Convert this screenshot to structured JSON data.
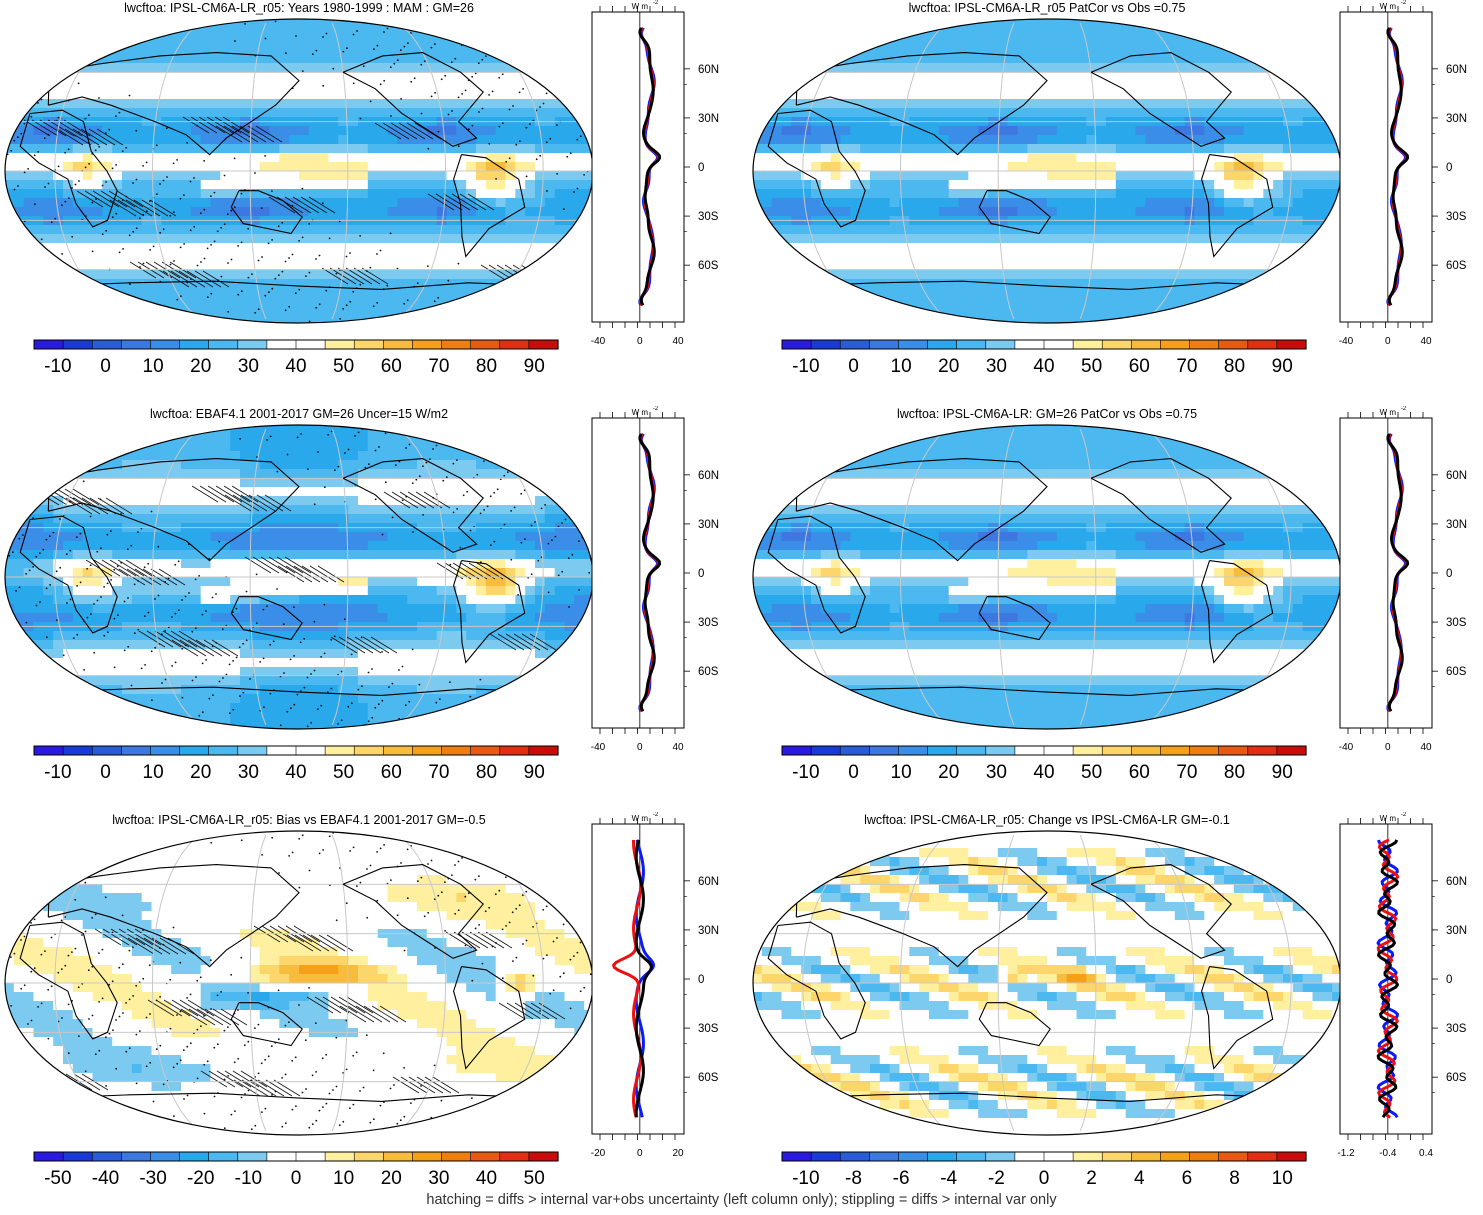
{
  "panels": [
    {
      "id": "p1",
      "title": "lwcftoa: IPSL-CM6A-LR_r05: Years 1980-1999 : MAM : GM=26",
      "pattern": "mean",
      "hatching": true,
      "stippling": true,
      "colorbar": [
        "-10",
        "0",
        "10",
        "20",
        "30",
        "40",
        "50",
        "60",
        "70",
        "80",
        "90"
      ],
      "profile_unit": "W m",
      "profile_xticks": [
        "-40",
        "0",
        "40"
      ],
      "profile_lat_ticks": [
        "60N",
        "30N",
        "0",
        "30S",
        "60S"
      ]
    },
    {
      "id": "p2",
      "title": "lwcftoa: IPSL-CM6A-LR_r05 PatCor vs Obs =0.75",
      "pattern": "mean",
      "hatching": false,
      "stippling": false,
      "colorbar": [
        "-10",
        "0",
        "10",
        "20",
        "30",
        "40",
        "50",
        "60",
        "70",
        "80",
        "90"
      ],
      "profile_unit": "W m",
      "profile_xticks": [
        "-40",
        "0",
        "40"
      ],
      "profile_lat_ticks": [
        "60N",
        "30N",
        "0",
        "30S",
        "60S"
      ]
    },
    {
      "id": "p3",
      "title": "lwcftoa: EBAF4.1 2001-2017 GM=26 Uncer=15 W/m2",
      "pattern": "obs",
      "hatching": true,
      "stippling": true,
      "colorbar": [
        "-10",
        "0",
        "10",
        "20",
        "30",
        "40",
        "50",
        "60",
        "70",
        "80",
        "90"
      ],
      "profile_unit": "W m",
      "profile_xticks": [
        "-40",
        "0",
        "40"
      ],
      "profile_lat_ticks": [
        "60N",
        "30N",
        "0",
        "30S",
        "60S"
      ]
    },
    {
      "id": "p4",
      "title": "lwcftoa: IPSL-CM6A-LR: GM=26 PatCor vs Obs =0.75",
      "pattern": "mean",
      "hatching": false,
      "stippling": false,
      "colorbar": [
        "-10",
        "0",
        "10",
        "20",
        "30",
        "40",
        "50",
        "60",
        "70",
        "80",
        "90"
      ],
      "profile_unit": "W m",
      "profile_xticks": [
        "-40",
        "0",
        "40"
      ],
      "profile_lat_ticks": [
        "60N",
        "30N",
        "0",
        "30S",
        "60S"
      ]
    },
    {
      "id": "p5",
      "title": "lwcftoa: IPSL-CM6A-LR_r05: Bias vs EBAF4.1 2001-2017 GM=-0.5",
      "pattern": "bias",
      "hatching": true,
      "stippling": true,
      "colorbar": [
        "-50",
        "-40",
        "-30",
        "-20",
        "-10",
        "0",
        "10",
        "20",
        "30",
        "40",
        "50"
      ],
      "profile_unit": "W m",
      "profile_xticks": [
        "-20",
        "0",
        "20"
      ],
      "profile_lat_ticks": [
        "60N",
        "30N",
        "0",
        "30S",
        "60S"
      ]
    },
    {
      "id": "p6",
      "title": "lwcftoa: IPSL-CM6A-LR_r05: Change vs IPSL-CM6A-LR GM=-0.1",
      "pattern": "change",
      "hatching": false,
      "stippling": false,
      "colorbar": [
        "-10",
        "-8",
        "-6",
        "-4",
        "-2",
        "0",
        "2",
        "4",
        "6",
        "8",
        "10"
      ],
      "profile_unit": "W m",
      "profile_xticks": [
        "-1.2",
        "-0.4",
        "0.4"
      ],
      "profile_lat_ticks": [
        "60N",
        "30N",
        "0",
        "30S",
        "60S"
      ]
    }
  ],
  "palette": [
    "#2a1ae0",
    "#1a3ad8",
    "#2a5cd8",
    "#3c78e0",
    "#3a8ee8",
    "#2aa8ec",
    "#4cb8f0",
    "#7ccaf0",
    "#ffffff",
    "#ffffff",
    "#fff0a0",
    "#fcd66a",
    "#f8bc3c",
    "#f4a018",
    "#ee7e10",
    "#e85a14",
    "#e22e14",
    "#c80c0c"
  ],
  "colors": {
    "model": "#0a1aff",
    "obs": "#ee1010",
    "mean": "#000000",
    "coast": "#000000",
    "grid": "#c8c8c8"
  },
  "footer": "hatching = diffs > internal var+obs uncertainty (left column only); stippling = diffs > internal var only"
}
